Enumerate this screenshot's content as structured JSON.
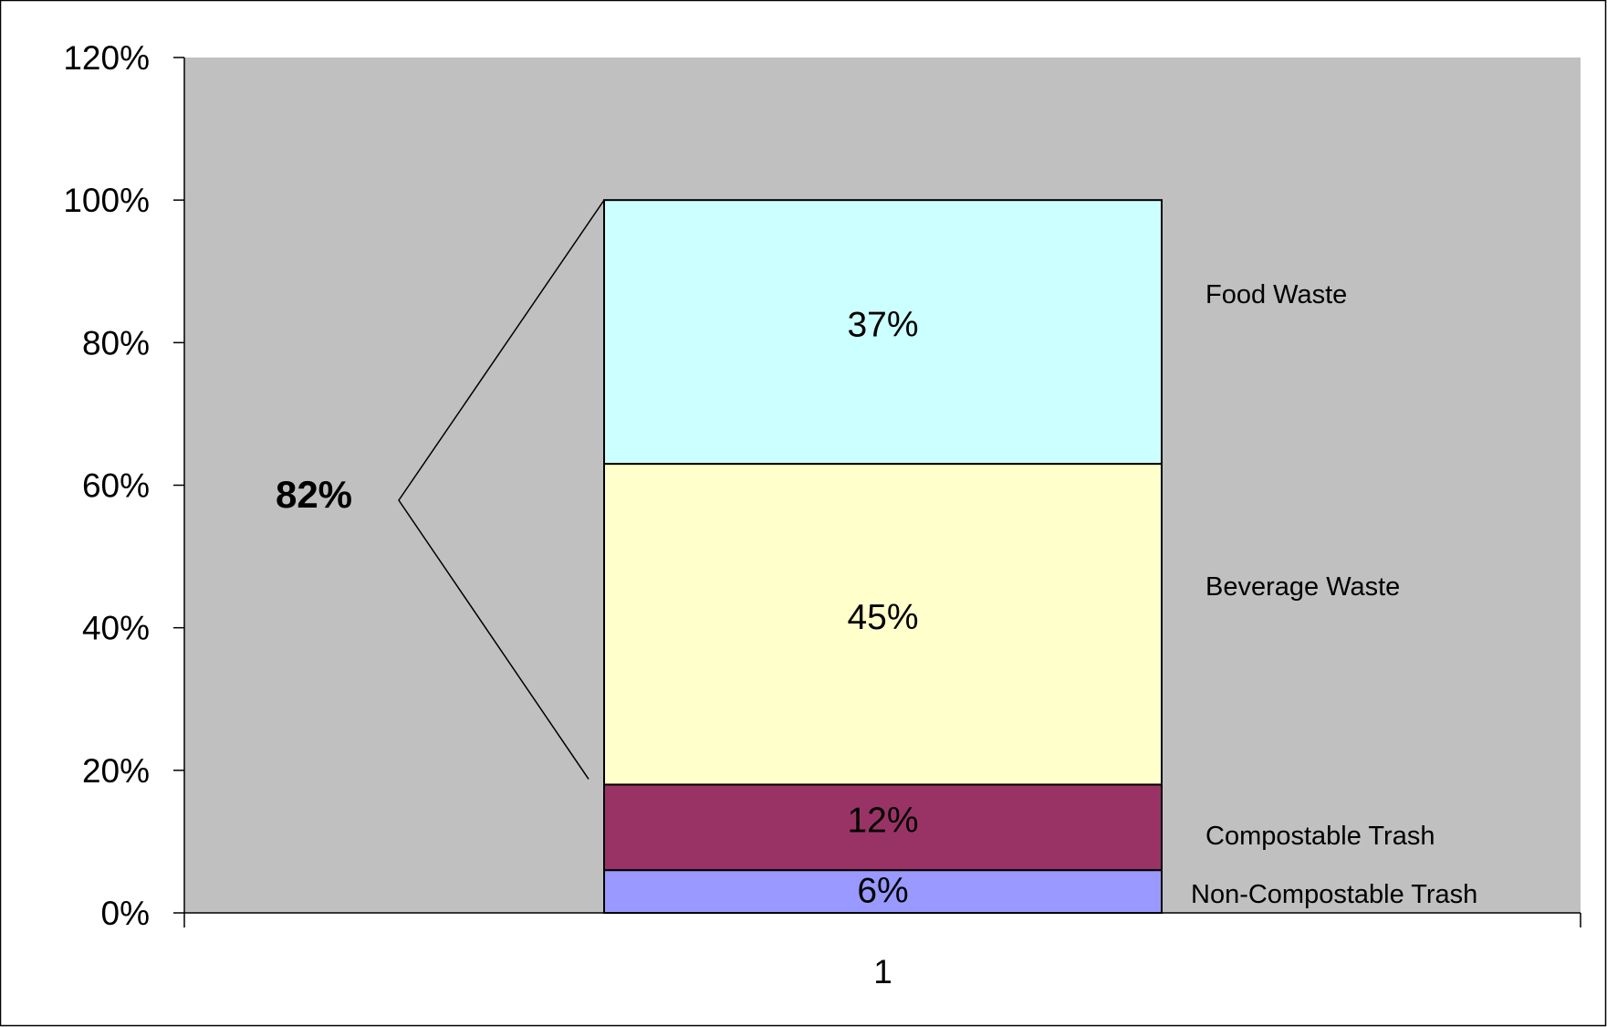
{
  "chart_data": {
    "type": "bar",
    "stacked": true,
    "categories": [
      "1"
    ],
    "series": [
      {
        "name": "Non-Compostable Trash",
        "values": [
          6
        ],
        "label": "6%",
        "color": "#9999ff"
      },
      {
        "name": "Compostable Trash",
        "values": [
          12
        ],
        "label": "12%",
        "color": "#993366"
      },
      {
        "name": "Beverage Waste",
        "values": [
          45
        ],
        "label": "45%",
        "color": "#ffffcc"
      },
      {
        "name": "Food Waste",
        "values": [
          37
        ],
        "label": "37%",
        "color": "#ccffff"
      }
    ],
    "ylim": [
      0,
      120
    ],
    "y_tick_values": [
      0,
      20,
      40,
      60,
      80,
      100,
      120
    ],
    "y_tick_labels": [
      "0%",
      "20%",
      "40%",
      "60%",
      "80%",
      "100%",
      "120%"
    ],
    "annotation": {
      "text": "82%",
      "from_value": 18,
      "to_value": 100
    },
    "legend_position": "right",
    "grid": false,
    "plot_background": "#c0c0c0",
    "title": "",
    "xlabel": "",
    "ylabel": ""
  }
}
